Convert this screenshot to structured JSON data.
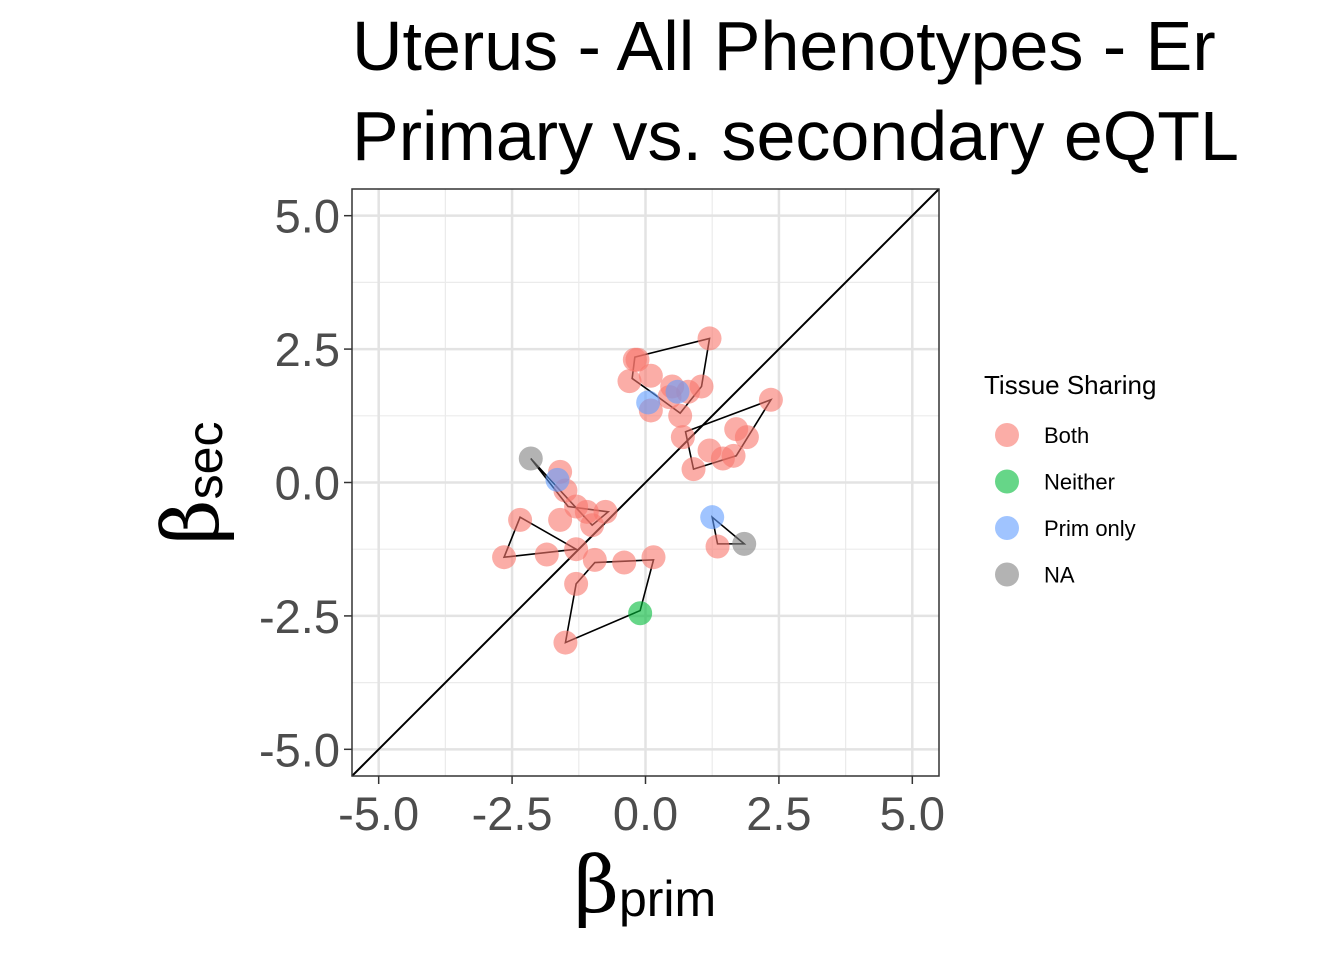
{
  "chart_data": {
    "type": "scatter",
    "title_lines": [
      "Uterus - All Phenotypes - Er",
      "Primary vs. secondary eQTL"
    ],
    "xlabel": {
      "symbol": "β",
      "subscript": "prim"
    },
    "ylabel": {
      "symbol": "β",
      "subscript": "sec"
    },
    "xlim": [
      -5.5,
      5.5
    ],
    "ylim": [
      -5.5,
      5.5
    ],
    "x_ticks": [
      -5.0,
      -2.5,
      0.0,
      2.5,
      5.0
    ],
    "y_ticks": [
      -5.0,
      -2.5,
      0.0,
      2.5,
      5.0
    ],
    "x_tick_labels": [
      "-5.0",
      "-2.5",
      "0.0",
      "2.5",
      "5.0"
    ],
    "y_tick_labels": [
      "-5.0",
      "-2.5",
      "0.0",
      "2.5",
      "5.0"
    ],
    "grid": true,
    "reference_line": "y = x",
    "legend": {
      "title": "Tissue Sharing",
      "position": "right",
      "entries": [
        {
          "label": "Both",
          "color": "#F8766D"
        },
        {
          "label": "Neither",
          "color": "#00BA38"
        },
        {
          "label": "Prim only",
          "color": "#619CFF"
        },
        {
          "label": "NA",
          "color": "#808080"
        }
      ]
    },
    "points": [
      {
        "x": -0.2,
        "y": 2.3,
        "group": "Both"
      },
      {
        "x": -0.15,
        "y": 2.3,
        "group": "Both"
      },
      {
        "x": 1.2,
        "y": 2.7,
        "group": "Both"
      },
      {
        "x": -0.3,
        "y": 1.9,
        "group": "Both"
      },
      {
        "x": 0.1,
        "y": 2.0,
        "group": "Both"
      },
      {
        "x": 0.45,
        "y": 1.6,
        "group": "Both"
      },
      {
        "x": 0.5,
        "y": 1.8,
        "group": "Both"
      },
      {
        "x": 0.65,
        "y": 1.25,
        "group": "Both"
      },
      {
        "x": 1.05,
        "y": 1.8,
        "group": "Both"
      },
      {
        "x": 0.8,
        "y": 1.7,
        "group": "Both"
      },
      {
        "x": 0.1,
        "y": 1.35,
        "group": "Both"
      },
      {
        "x": 0.7,
        "y": 0.85,
        "group": "Both"
      },
      {
        "x": 0.9,
        "y": 0.25,
        "group": "Both"
      },
      {
        "x": 1.2,
        "y": 0.6,
        "group": "Both"
      },
      {
        "x": 1.45,
        "y": 0.45,
        "group": "Both"
      },
      {
        "x": 1.65,
        "y": 0.5,
        "group": "Both"
      },
      {
        "x": 1.7,
        "y": 1.0,
        "group": "Both"
      },
      {
        "x": 1.9,
        "y": 0.85,
        "group": "Both"
      },
      {
        "x": 2.35,
        "y": 1.55,
        "group": "Both"
      },
      {
        "x": -1.6,
        "y": 0.2,
        "group": "Both"
      },
      {
        "x": -1.5,
        "y": -0.15,
        "group": "Both"
      },
      {
        "x": -1.3,
        "y": -0.45,
        "group": "Both"
      },
      {
        "x": -1.1,
        "y": -0.55,
        "group": "Both"
      },
      {
        "x": -1.0,
        "y": -0.8,
        "group": "Both"
      },
      {
        "x": -0.75,
        "y": -0.55,
        "group": "Both"
      },
      {
        "x": -1.6,
        "y": -0.7,
        "group": "Both"
      },
      {
        "x": -2.35,
        "y": -0.7,
        "group": "Both"
      },
      {
        "x": -2.65,
        "y": -1.4,
        "group": "Both"
      },
      {
        "x": -1.85,
        "y": -1.35,
        "group": "Both"
      },
      {
        "x": -1.3,
        "y": -1.25,
        "group": "Both"
      },
      {
        "x": -1.3,
        "y": -1.9,
        "group": "Both"
      },
      {
        "x": -0.95,
        "y": -1.45,
        "group": "Both"
      },
      {
        "x": -0.4,
        "y": -1.5,
        "group": "Both"
      },
      {
        "x": 0.15,
        "y": -1.4,
        "group": "Both"
      },
      {
        "x": -1.5,
        "y": -3.0,
        "group": "Both"
      },
      {
        "x": 1.35,
        "y": -1.2,
        "group": "Both"
      },
      {
        "x": -0.1,
        "y": -2.45,
        "group": "Neither"
      },
      {
        "x": 0.05,
        "y": 1.5,
        "group": "Prim only"
      },
      {
        "x": 0.6,
        "y": 1.7,
        "group": "Prim only"
      },
      {
        "x": -1.65,
        "y": 0.05,
        "group": "Prim only"
      },
      {
        "x": 1.25,
        "y": -0.65,
        "group": "Prim only"
      },
      {
        "x": -2.15,
        "y": 0.45,
        "group": "NA"
      },
      {
        "x": 1.85,
        "y": -1.15,
        "group": "NA"
      }
    ],
    "outlines": [
      [
        [
          -0.2,
          2.35
        ],
        [
          1.2,
          2.7
        ],
        [
          1.05,
          1.8
        ],
        [
          0.65,
          1.3
        ],
        [
          0.1,
          1.7
        ],
        [
          -0.25,
          1.95
        ]
      ],
      [
        [
          2.35,
          1.55
        ],
        [
          0.75,
          0.95
        ],
        [
          0.9,
          0.25
        ],
        [
          1.7,
          0.5
        ]
      ],
      [
        [
          -2.15,
          0.45
        ],
        [
          -1.0,
          -0.8
        ],
        [
          -0.7,
          -0.55
        ],
        [
          -1.45,
          -0.45
        ]
      ],
      [
        [
          -2.35,
          -0.65
        ],
        [
          -1.3,
          -1.25
        ],
        [
          -2.65,
          -1.4
        ]
      ],
      [
        [
          0.15,
          -1.45
        ],
        [
          -0.1,
          -2.4
        ],
        [
          -1.5,
          -3.0
        ],
        [
          -1.3,
          -1.9
        ],
        [
          -0.95,
          -1.5
        ]
      ],
      [
        [
          1.25,
          -0.65
        ],
        [
          1.85,
          -1.15
        ],
        [
          1.35,
          -1.15
        ]
      ]
    ]
  }
}
